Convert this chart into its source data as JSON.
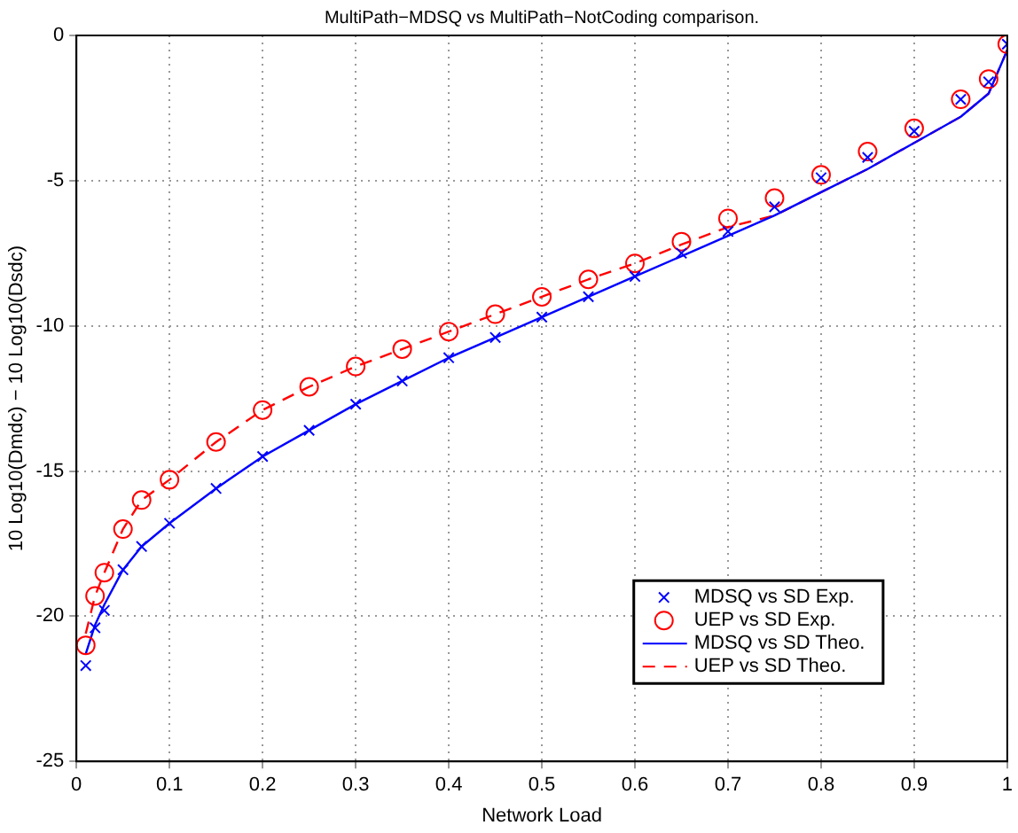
{
  "chart_data": {
    "type": "line",
    "title": "MultiPath−MDSQ vs MultiPath−NotCoding comparison.",
    "xlabel": "Network Load",
    "ylabel": "10 Log10(Dmdc) − 10 Log10(Dsdc)",
    "x": [
      0.01,
      0.02,
      0.03,
      0.05,
      0.07,
      0.1,
      0.15,
      0.2,
      0.25,
      0.3,
      0.35,
      0.4,
      0.45,
      0.5,
      0.55,
      0.6,
      0.65,
      0.7,
      0.75,
      0.8,
      0.85,
      0.9,
      0.95,
      0.98,
      1.0
    ],
    "series": [
      {
        "name": "MDSQ vs SD Exp.",
        "type": "scatter",
        "marker": "cross",
        "color": "#0000ff",
        "values": [
          -21.7,
          -20.4,
          -19.8,
          -18.4,
          -17.6,
          -16.8,
          -15.6,
          -14.5,
          -13.6,
          -12.7,
          -11.9,
          -11.1,
          -10.4,
          -9.7,
          -9.0,
          -8.3,
          -7.5,
          -6.75,
          -5.9,
          -4.9,
          -4.2,
          -3.3,
          -2.2,
          -1.6,
          -0.3
        ]
      },
      {
        "name": "UEP vs SD Exp.",
        "type": "scatter",
        "marker": "circle",
        "color": "#ff0000",
        "values": [
          -21.0,
          -19.3,
          -18.5,
          -17.0,
          -16.0,
          -15.3,
          -14.0,
          -12.9,
          -12.1,
          -11.4,
          -10.8,
          -10.2,
          -9.6,
          -9.0,
          -8.4,
          -7.85,
          -7.1,
          -6.3,
          -5.6,
          -4.8,
          -4.0,
          -3.2,
          -2.2,
          -1.5,
          -0.3
        ]
      },
      {
        "name": "MDSQ vs SD Theo.",
        "line_style": "solid",
        "color": "#0000ff",
        "values": [
          -21.3,
          -20.3,
          -19.6,
          -18.4,
          -17.6,
          -16.8,
          -15.6,
          -14.5,
          -13.6,
          -12.7,
          -11.9,
          -11.1,
          -10.4,
          -9.7,
          -9.0,
          -8.3,
          -7.6,
          -6.9,
          -6.2,
          -5.4,
          -4.6,
          -3.7,
          -2.8,
          -2.0,
          -0.5
        ]
      },
      {
        "name": "UEP vs SD Theo.",
        "line_style": "dashed",
        "color": "#ff0000",
        "values": [
          -20.6,
          -19.3,
          -18.5,
          -17.0,
          -16.0,
          -15.3,
          -14.0,
          -12.9,
          -12.1,
          -11.4,
          -10.8,
          -10.2,
          -9.6,
          -9.0,
          -8.4,
          -7.85,
          -7.2,
          -6.6,
          -6.2,
          -5.4,
          -4.6,
          -3.7,
          -2.8,
          -2.0,
          -0.5
        ]
      }
    ],
    "xlim": [
      0,
      1
    ],
    "xticks": [
      0,
      0.1,
      0.2,
      0.3,
      0.4,
      0.5,
      0.6,
      0.7,
      0.8,
      0.9,
      1
    ],
    "ylim": [
      -25,
      0
    ],
    "yticks": [
      -25,
      -20,
      -15,
      -10,
      -5,
      0
    ],
    "grid": true,
    "legend": "bottom right"
  }
}
